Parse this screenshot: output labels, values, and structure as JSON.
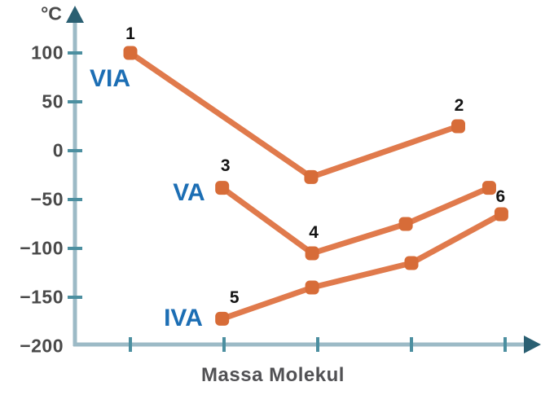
{
  "chart_data": {
    "type": "line",
    "title": "",
    "xlabel": "Massa Molekul",
    "ylabel_unit": "°C",
    "ylim": [
      -200,
      100
    ],
    "grid": false,
    "legend_position": "none",
    "y_ticks": [
      {
        "label": "100",
        "value": 100
      },
      {
        "label": "50",
        "value": 50
      },
      {
        "label": "0",
        "value": 0
      },
      {
        "label": "−50",
        "value": -50
      },
      {
        "label": "−100",
        "value": -100
      },
      {
        "label": "−150",
        "value": -150
      },
      {
        "label": "−200",
        "value": -200
      }
    ],
    "x_tick_positions": [
      1,
      2,
      3,
      4,
      5
    ],
    "x_tick_labels": [
      "",
      "",
      "",
      "",
      ""
    ],
    "series": [
      {
        "name": "VIA",
        "points": [
          {
            "pos": 1.0,
            "temp": 100,
            "label": "1",
            "label_dx": 0,
            "label_dy": -23
          },
          {
            "pos": 2.93,
            "temp": -27
          },
          {
            "pos": 4.5,
            "temp": 25,
            "label": "2",
            "label_dx": 1,
            "label_dy": -25
          }
        ]
      },
      {
        "name": "VA",
        "points": [
          {
            "pos": 1.98,
            "temp": -38,
            "label": "3",
            "label_dx": 4,
            "label_dy": -27
          },
          {
            "pos": 2.94,
            "temp": -105,
            "label": "4",
            "label_dx": 2,
            "label_dy": -25
          },
          {
            "pos": 3.94,
            "temp": -75
          },
          {
            "pos": 4.83,
            "temp": -38
          }
        ]
      },
      {
        "name": "IVA",
        "points": [
          {
            "pos": 1.98,
            "temp": -172,
            "label": "5",
            "label_dx": 15,
            "label_dy": -25
          },
          {
            "pos": 2.94,
            "temp": -140
          },
          {
            "pos": 4.0,
            "temp": -115
          },
          {
            "pos": 4.96,
            "temp": -65,
            "label": "6",
            "label_dx": -1,
            "label_dy": -21
          }
        ]
      }
    ],
    "annotations": [
      {
        "text": "VIA",
        "x": 135,
        "y": 97
      },
      {
        "text": "VA",
        "x": 232,
        "y": 237
      },
      {
        "text": "IVA",
        "x": 225,
        "y": 391
      }
    ]
  },
  "colors": {
    "axis_line": "#9CBAC6",
    "axis_tick": "#4C8FA0",
    "axis_arrow": "#2A5F72",
    "line": "#E07A4C",
    "marker": "#D76C38",
    "tick_label": "#4A4A4A",
    "point_label": "#141414",
    "group_label": "#1C6EB4",
    "x_title": "#515154"
  }
}
